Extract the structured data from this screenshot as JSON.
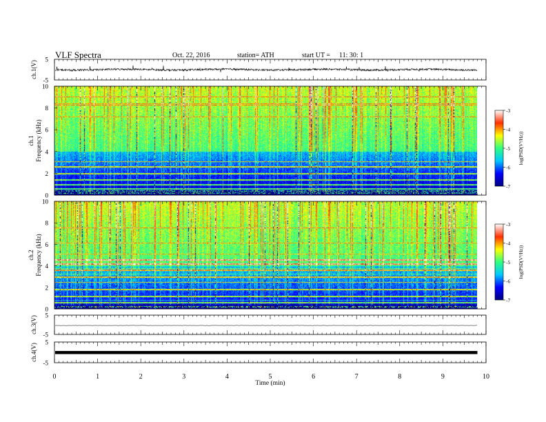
{
  "header": {
    "title": "VLF  Spectra",
    "date": "Oct. 22, 2016",
    "station": "station= ATH",
    "start_label": "start  UT  =",
    "start_time": "11: 30: 1"
  },
  "colorbar": {
    "label": "log(PSD(V²/Hz))",
    "ticks": [
      "-3",
      "-4",
      "-5",
      "-6",
      "-7"
    ],
    "colors": [
      "#000080",
      "#0000ff",
      "#00c8ff",
      "#30ff80",
      "#ffff00",
      "#ff3000",
      "#ffffff"
    ]
  },
  "chart_data": [
    {
      "type": "line",
      "panel": "ch1-waveform",
      "ylabel": "ch.1(V)",
      "ylim": [
        -5,
        5
      ],
      "y_ticks": [
        "5",
        "-5"
      ],
      "xlim": [
        0,
        10
      ],
      "series": [
        {
          "values_approx": "noisy signal near 0 V with sharp spikes (approx. -1 to +1 V, occasional spikes to about -3 V)"
        }
      ]
    },
    {
      "type": "heatmap",
      "panel": "ch1-spectrogram",
      "ylabel": "ch.1\nFrequency (kHz)",
      "ylabel_line1": "ch.1",
      "ylabel_line2": "Frequency (kHz)",
      "ylim": [
        0,
        10
      ],
      "y_ticks": [
        "0",
        "2",
        "4",
        "6",
        "8",
        "10"
      ],
      "xlim": [
        0,
        9.8
      ],
      "color_range": [
        -7,
        -3
      ],
      "description_values": {
        "background_logPSD_high_freq": -5.0,
        "background_logPSD_low_freq": -6.7,
        "strong_lines_kHz": [
          0.2,
          0.4,
          0.6,
          1.0,
          1.4,
          2.0,
          2.6,
          3.1
        ]
      }
    },
    {
      "type": "heatmap",
      "panel": "ch2-spectrogram",
      "ylabel": "ch.2\nFrequency (kHz)",
      "ylabel_line1": "ch.2",
      "ylabel_line2": "Frequency (kHz)",
      "ylim": [
        0,
        10
      ],
      "y_ticks": [
        "0",
        "2",
        "4",
        "6",
        "8",
        "10"
      ],
      "xlim": [
        0,
        9.8
      ],
      "color_range": [
        -7,
        -3
      ],
      "description_values": {
        "background_logPSD_high_freq": -5.0,
        "background_logPSD_low_freq": -6.5,
        "strong_lines_kHz": [
          0.2,
          0.6,
          1.2,
          1.8,
          2.5,
          3.0,
          3.6,
          4.2,
          4.6
        ]
      }
    },
    {
      "type": "line",
      "panel": "ch3-waveform",
      "ylabel": "ch.3(V)",
      "ylim": [
        -5,
        5
      ],
      "y_ticks": [
        "5",
        "-5"
      ],
      "xlim": [
        0,
        10
      ],
      "series": [
        {
          "values_approx": "flat near 0 V"
        }
      ]
    },
    {
      "type": "line",
      "panel": "ch4-waveform",
      "ylabel": "ch.4(V)",
      "ylim": [
        -5,
        5
      ],
      "y_ticks": [
        "5",
        "-5"
      ],
      "xlim": [
        0,
        10
      ],
      "series": [
        {
          "values_approx": "thick band near 0 V"
        }
      ]
    }
  ],
  "x_axis": {
    "label": "Time  (min)",
    "ticks": [
      "0",
      "1",
      "2",
      "3",
      "4",
      "5",
      "6",
      "7",
      "8",
      "9",
      "10"
    ]
  }
}
